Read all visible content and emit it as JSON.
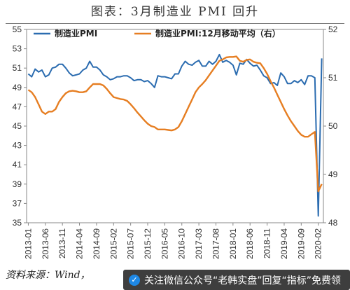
{
  "header": {
    "title": "图表：3月制造业 PMI 回升"
  },
  "footer": {
    "source": "资料来源：Wind，",
    "banner_text": "关注微信公众号“老韩实盘”回复“指标”免费领",
    "banner_icon": "wechat-icon"
  },
  "chart_data": {
    "type": "line",
    "title": "",
    "x": [
      "2013-01",
      "2013-02",
      "2013-03",
      "2013-04",
      "2013-05",
      "2013-06",
      "2013-07",
      "2013-08",
      "2013-09",
      "2013-10",
      "2013-11",
      "2013-12",
      "2014-01",
      "2014-02",
      "2014-03",
      "2014-04",
      "2014-05",
      "2014-06",
      "2014-07",
      "2014-08",
      "2014-09",
      "2014-10",
      "2014-11",
      "2014-12",
      "2015-01",
      "2015-02",
      "2015-03",
      "2015-04",
      "2015-05",
      "2015-06",
      "2015-07",
      "2015-08",
      "2015-09",
      "2015-10",
      "2015-11",
      "2015-12",
      "2016-01",
      "2016-02",
      "2016-03",
      "2016-04",
      "2016-05",
      "2016-06",
      "2016-07",
      "2016-08",
      "2016-09",
      "2016-10",
      "2016-11",
      "2016-12",
      "2017-01",
      "2017-02",
      "2017-03",
      "2017-04",
      "2017-05",
      "2017-06",
      "2017-07",
      "2017-08",
      "2017-09",
      "2017-10",
      "2017-11",
      "2017-12",
      "2018-01",
      "2018-02",
      "2018-03",
      "2018-04",
      "2018-05",
      "2018-06",
      "2018-07",
      "2018-08",
      "2018-09",
      "2018-10",
      "2018-11",
      "2018-12",
      "2019-01",
      "2019-02",
      "2019-03",
      "2019-04",
      "2019-05",
      "2019-06",
      "2019-07",
      "2019-08",
      "2019-09",
      "2019-10",
      "2019-11",
      "2019-12",
      "2020-01",
      "2020-02",
      "2020-03"
    ],
    "x_tick_labels": [
      "2013-01",
      "2013-06",
      "2013-11",
      "2014-04",
      "2014-09",
      "2015-02",
      "2015-07",
      "2015-12",
      "2016-05",
      "2016-10",
      "2017-03",
      "2017-08",
      "2018-01",
      "2018-06",
      "2018-11",
      "2019-04",
      "2019-09",
      "2020-02"
    ],
    "left_axis": {
      "ylim": [
        35,
        55
      ],
      "ticks": [
        35,
        37,
        39,
        41,
        43,
        45,
        47,
        49,
        51,
        53,
        55
      ]
    },
    "right_axis": {
      "ylim": [
        48,
        52
      ],
      "ticks": [
        48,
        49,
        50,
        51,
        52
      ]
    },
    "series": [
      {
        "name": "制造业PMI",
        "axis": "left",
        "color": "#2b6cb0",
        "values": [
          50.4,
          50.1,
          50.9,
          50.6,
          50.8,
          50.1,
          50.3,
          51.0,
          51.1,
          51.4,
          51.4,
          51.0,
          50.5,
          50.2,
          50.3,
          50.4,
          50.8,
          51.0,
          51.7,
          51.1,
          51.1,
          50.8,
          50.3,
          50.1,
          49.8,
          49.9,
          50.1,
          50.1,
          50.2,
          50.2,
          50.0,
          49.7,
          49.8,
          49.8,
          49.6,
          49.7,
          49.4,
          49.0,
          50.2,
          50.1,
          50.1,
          50.0,
          49.9,
          50.4,
          50.4,
          51.2,
          51.7,
          51.4,
          51.3,
          51.6,
          51.8,
          51.2,
          51.2,
          51.7,
          51.4,
          51.7,
          52.4,
          51.6,
          51.8,
          51.6,
          51.3,
          50.3,
          51.5,
          51.4,
          51.9,
          51.5,
          51.2,
          51.3,
          50.8,
          50.2,
          50.0,
          49.4,
          49.5,
          49.2,
          50.5,
          50.1,
          49.4,
          49.4,
          49.7,
          49.5,
          49.8,
          49.3,
          50.2,
          50.2,
          50.0,
          35.7,
          52.0
        ]
      },
      {
        "name": "制造业PMI:12月移动平均（右）",
        "axis": "right",
        "color": "#e67e22",
        "values": [
          50.75,
          50.7,
          50.6,
          50.45,
          50.3,
          50.25,
          50.3,
          50.3,
          50.35,
          50.5,
          50.6,
          50.68,
          50.72,
          50.73,
          50.72,
          50.7,
          50.7,
          50.72,
          50.8,
          50.87,
          50.87,
          50.87,
          50.84,
          50.77,
          50.68,
          50.6,
          50.58,
          50.56,
          50.55,
          50.52,
          50.45,
          50.37,
          50.28,
          50.2,
          50.12,
          50.05,
          50.0,
          49.98,
          49.93,
          49.93,
          49.93,
          49.92,
          49.91,
          49.93,
          49.98,
          50.1,
          50.25,
          50.4,
          50.55,
          50.7,
          50.8,
          50.87,
          50.95,
          51.05,
          51.15,
          51.25,
          51.35,
          51.38,
          51.42,
          51.43,
          51.43,
          51.44,
          51.35,
          51.33,
          51.37,
          51.38,
          51.33,
          51.31,
          51.3,
          51.2,
          51.08,
          50.93,
          50.8,
          50.65,
          50.5,
          50.35,
          50.22,
          50.1,
          50.0,
          49.9,
          49.82,
          49.78,
          49.78,
          49.83,
          49.88,
          48.65,
          48.8
        ]
      }
    ],
    "grid": false,
    "legend": "top-left"
  }
}
